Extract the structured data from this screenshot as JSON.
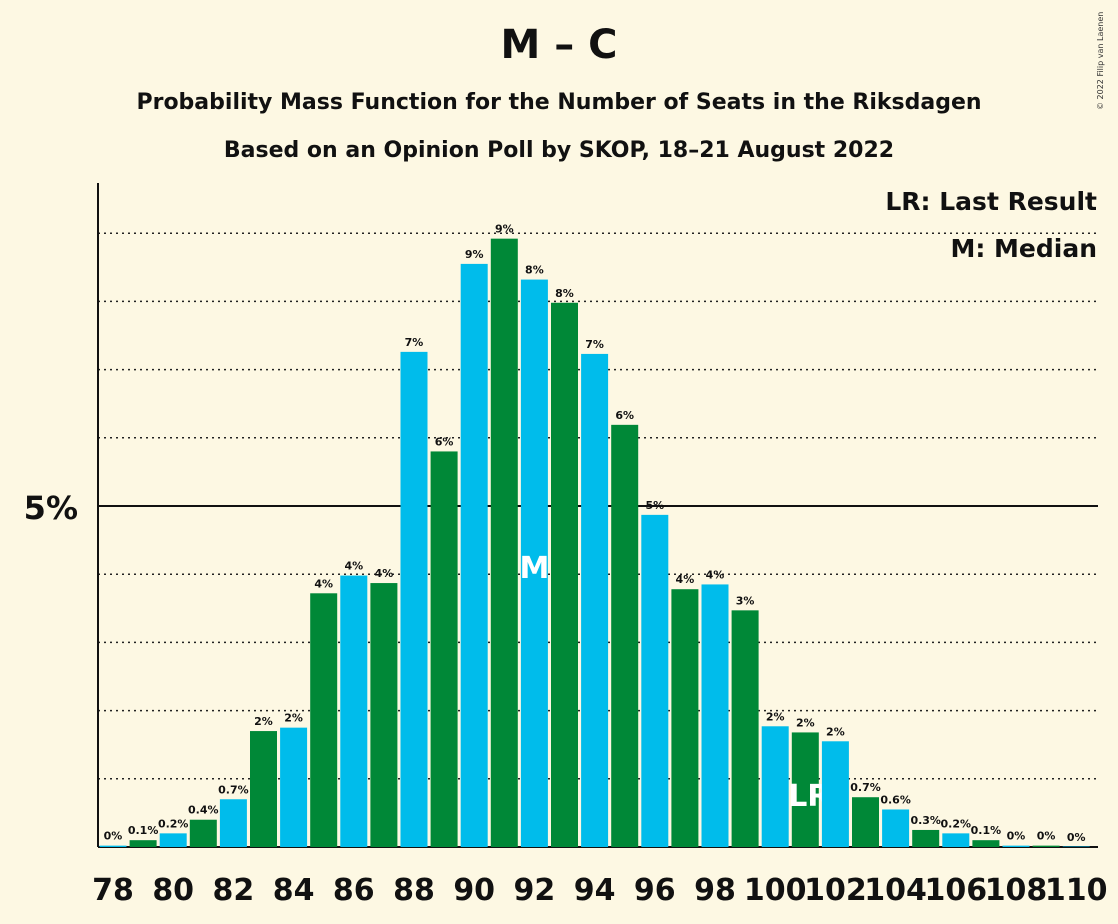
{
  "title": "M – C",
  "subtitle1": "Probability Mass Function for the Number of Seats in the Riksdagen",
  "subtitle2": "Based on an Opinion Poll by SKOP, 18–21 August 2022",
  "copyright": "© 2022 Filip van Laenen",
  "legend": {
    "last_result": "LR: Last Result",
    "median": "M: Median"
  },
  "colors": {
    "blue": "#00BCEB",
    "green": "#008837",
    "background": "#FDF8E3"
  },
  "chart_data": {
    "type": "bar",
    "ytick_label": "5%",
    "y_major_tick": 5,
    "y_gridlines": [
      1,
      2,
      3,
      4,
      5,
      6,
      7,
      8,
      9
    ],
    "ylim": [
      0,
      9.7
    ],
    "x": [
      78,
      79,
      80,
      81,
      82,
      83,
      84,
      85,
      86,
      87,
      88,
      89,
      90,
      91,
      92,
      93,
      94,
      95,
      96,
      97,
      98,
      99,
      100,
      101,
      102,
      103,
      104,
      105,
      106,
      107,
      108,
      109,
      110
    ],
    "values": [
      0.02,
      0.1,
      0.2,
      0.4,
      0.7,
      1.7,
      1.75,
      3.72,
      3.98,
      3.87,
      7.26,
      5.8,
      8.55,
      8.92,
      8.32,
      7.98,
      7.23,
      6.19,
      4.87,
      3.78,
      3.85,
      3.47,
      1.77,
      1.68,
      1.55,
      0.73,
      0.55,
      0.25,
      0.2,
      0.1,
      0.02,
      0.02,
      0.0
    ],
    "labels": [
      "0%",
      "0.1%",
      "0.2%",
      "0.4%",
      "0.7%",
      "2%",
      "2%",
      "4%",
      "4%",
      "4%",
      "7%",
      "6%",
      "9%",
      "9%",
      "8%",
      "8%",
      "7%",
      "6%",
      "5%",
      "4%",
      "4%",
      "3%",
      "2%",
      "2%",
      "2%",
      "0.7%",
      "0.6%",
      "0.3%",
      "0.2%",
      "0.1%",
      "0%",
      "0%",
      "0%"
    ],
    "xtick_labels": [
      "78",
      "80",
      "82",
      "84",
      "86",
      "88",
      "90",
      "92",
      "94",
      "96",
      "98",
      "100",
      "102",
      "104",
      "106",
      "108",
      "110"
    ],
    "median_seat": 92,
    "median_marker": "M",
    "last_result_seat": 101,
    "last_result_marker": "LR"
  }
}
